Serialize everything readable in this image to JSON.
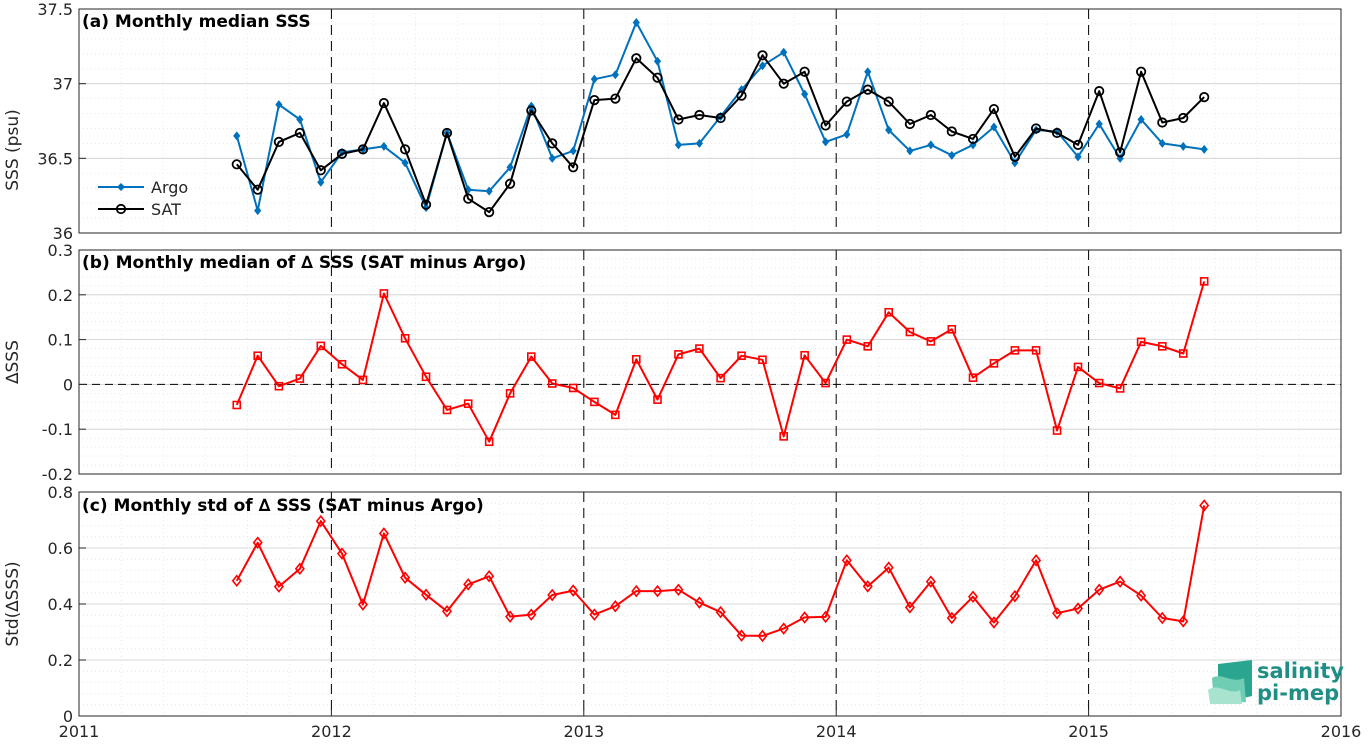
{
  "colors": {
    "argo": "#0072BD",
    "sat": "#000000",
    "delta": "#FF0000",
    "axis": "#262626",
    "grid": "#d9d9d9",
    "logo": "#1f8f86"
  },
  "logo": {
    "line1": "salinity",
    "line2": "pi-mep",
    "icon": "wave-logo-icon"
  },
  "chart_data": [
    {
      "type": "line",
      "title": "(a) Monthly median SSS",
      "xlabel": "",
      "ylabel": "SSS (psu)",
      "xlim": [
        2011,
        2016
      ],
      "ylim": [
        36,
        37.5
      ],
      "y_ticks": [
        "36",
        "36.5",
        "37",
        "37.5"
      ],
      "grid": true,
      "legend_position": "middle-left",
      "series": [
        {
          "name": "Argo",
          "marker": "diamond",
          "x": [
            2011.625,
            2011.708,
            2011.792,
            2011.875,
            2011.958,
            2012.042,
            2012.125,
            2012.208,
            2012.292,
            2012.375,
            2012.458,
            2012.542,
            2012.625,
            2012.708,
            2012.792,
            2012.875,
            2012.958,
            2013.042,
            2013.125,
            2013.208,
            2013.292,
            2013.375,
            2013.458,
            2013.542,
            2013.625,
            2013.708,
            2013.792,
            2013.875,
            2013.958,
            2014.042,
            2014.125,
            2014.208,
            2014.292,
            2014.375,
            2014.458,
            2014.542,
            2014.625,
            2014.708,
            2014.792,
            2014.875,
            2014.958,
            2015.042,
            2015.125,
            2015.208,
            2015.292,
            2015.375,
            2015.458
          ],
          "y": [
            36.65,
            36.15,
            36.86,
            36.76,
            36.34,
            36.54,
            36.56,
            36.58,
            36.47,
            36.17,
            36.67,
            36.29,
            36.28,
            36.44,
            36.85,
            36.5,
            36.55,
            37.03,
            37.06,
            37.41,
            37.15,
            36.59,
            36.6,
            36.78,
            36.96,
            37.12,
            37.21,
            36.93,
            36.61,
            36.66,
            37.08,
            36.69,
            36.55,
            36.59,
            36.52,
            36.59,
            36.71,
            36.47,
            36.69,
            36.68,
            36.51,
            36.73,
            36.5,
            36.76,
            36.6,
            36.58,
            36.56
          ]
        },
        {
          "name": "SAT",
          "marker": "circle",
          "x": [
            2011.625,
            2011.708,
            2011.792,
            2011.875,
            2011.958,
            2012.042,
            2012.125,
            2012.208,
            2012.292,
            2012.375,
            2012.458,
            2012.542,
            2012.625,
            2012.708,
            2012.792,
            2012.875,
            2012.958,
            2013.042,
            2013.125,
            2013.208,
            2013.292,
            2013.375,
            2013.458,
            2013.542,
            2013.625,
            2013.708,
            2013.792,
            2013.875,
            2013.958,
            2014.042,
            2014.125,
            2014.208,
            2014.292,
            2014.375,
            2014.458,
            2014.542,
            2014.625,
            2014.708,
            2014.792,
            2014.875,
            2014.958,
            2015.042,
            2015.125,
            2015.208,
            2015.292,
            2015.375,
            2015.458
          ],
          "y": [
            36.46,
            36.29,
            36.61,
            36.67,
            36.42,
            36.53,
            36.56,
            36.87,
            36.56,
            36.19,
            36.67,
            36.23,
            36.14,
            36.33,
            36.82,
            36.6,
            36.44,
            36.89,
            36.9,
            37.17,
            37.04,
            36.76,
            36.79,
            36.77,
            36.92,
            37.19,
            37.0,
            37.08,
            36.72,
            36.88,
            36.96,
            36.88,
            36.73,
            36.79,
            36.68,
            36.63,
            36.83,
            36.51,
            36.7,
            36.67,
            36.59,
            36.95,
            36.54,
            37.08,
            36.74,
            36.77,
            36.91
          ]
        }
      ]
    },
    {
      "type": "line",
      "title": "(b) Monthly median of ∆ SSS (SAT minus Argo)",
      "xlabel": "",
      "ylabel": "∆SSS",
      "xlim": [
        2011,
        2016
      ],
      "ylim": [
        -0.2,
        0.3
      ],
      "y_ticks": [
        "-0.2",
        "-0.1",
        "0",
        "0.1",
        "0.2",
        "0.3"
      ],
      "grid": true,
      "series": [
        {
          "marker": "square",
          "x": [
            2011.625,
            2011.708,
            2011.792,
            2011.875,
            2011.958,
            2012.042,
            2012.125,
            2012.208,
            2012.292,
            2012.375,
            2012.458,
            2012.542,
            2012.625,
            2012.708,
            2012.792,
            2012.875,
            2012.958,
            2013.042,
            2013.125,
            2013.208,
            2013.292,
            2013.375,
            2013.458,
            2013.542,
            2013.625,
            2013.708,
            2013.792,
            2013.875,
            2013.958,
            2014.042,
            2014.125,
            2014.208,
            2014.292,
            2014.375,
            2014.458,
            2014.542,
            2014.625,
            2014.708,
            2014.792,
            2014.875,
            2014.958,
            2015.042,
            2015.125,
            2015.208,
            2015.292,
            2015.375,
            2015.458
          ],
          "y": [
            -0.046,
            0.064,
            -0.004,
            0.013,
            0.086,
            0.045,
            0.01,
            0.203,
            0.103,
            0.017,
            -0.057,
            -0.043,
            -0.128,
            -0.02,
            0.062,
            0.002,
            -0.008,
            -0.039,
            -0.068,
            0.056,
            -0.034,
            0.067,
            0.08,
            0.014,
            0.064,
            0.055,
            -0.116,
            0.065,
            0.003,
            0.1,
            0.085,
            0.161,
            0.117,
            0.096,
            0.123,
            0.015,
            0.047,
            0.076,
            0.076,
            -0.103,
            0.039,
            0.003,
            -0.009,
            0.095,
            0.085,
            0.069,
            0.23
          ]
        }
      ]
    },
    {
      "type": "line",
      "title": "(c) Monthly std of ∆ SSS (SAT minus Argo)",
      "xlabel": "",
      "ylabel": "Std(∆SSS)",
      "xlim": [
        2011,
        2016
      ],
      "ylim": [
        0,
        0.8
      ],
      "y_ticks": [
        "0",
        "0.2",
        "0.4",
        "0.6",
        "0.8"
      ],
      "x_ticks": [
        "2011",
        "2012",
        "2013",
        "2014",
        "2015",
        "2016"
      ],
      "grid": true,
      "series": [
        {
          "marker": "diamond-open",
          "x": [
            2011.625,
            2011.708,
            2011.792,
            2011.875,
            2011.958,
            2012.042,
            2012.125,
            2012.208,
            2012.292,
            2012.375,
            2012.458,
            2012.542,
            2012.625,
            2012.708,
            2012.792,
            2012.875,
            2012.958,
            2013.042,
            2013.125,
            2013.208,
            2013.292,
            2013.375,
            2013.458,
            2013.542,
            2013.625,
            2013.708,
            2013.792,
            2013.875,
            2013.958,
            2014.042,
            2014.125,
            2014.208,
            2014.292,
            2014.375,
            2014.458,
            2014.542,
            2014.625,
            2014.708,
            2014.792,
            2014.875,
            2014.958,
            2015.042,
            2015.125,
            2015.208,
            2015.292,
            2015.375,
            2015.458
          ],
          "y": [
            0.483,
            0.619,
            0.462,
            0.526,
            0.696,
            0.58,
            0.398,
            0.652,
            0.494,
            0.433,
            0.374,
            0.47,
            0.499,
            0.355,
            0.362,
            0.432,
            0.448,
            0.362,
            0.392,
            0.446,
            0.446,
            0.451,
            0.405,
            0.371,
            0.287,
            0.286,
            0.312,
            0.352,
            0.354,
            0.556,
            0.463,
            0.53,
            0.388,
            0.48,
            0.35,
            0.426,
            0.334,
            0.428,
            0.556,
            0.367,
            0.384,
            0.451,
            0.48,
            0.43,
            0.35,
            0.338,
            0.752
          ]
        }
      ]
    }
  ]
}
